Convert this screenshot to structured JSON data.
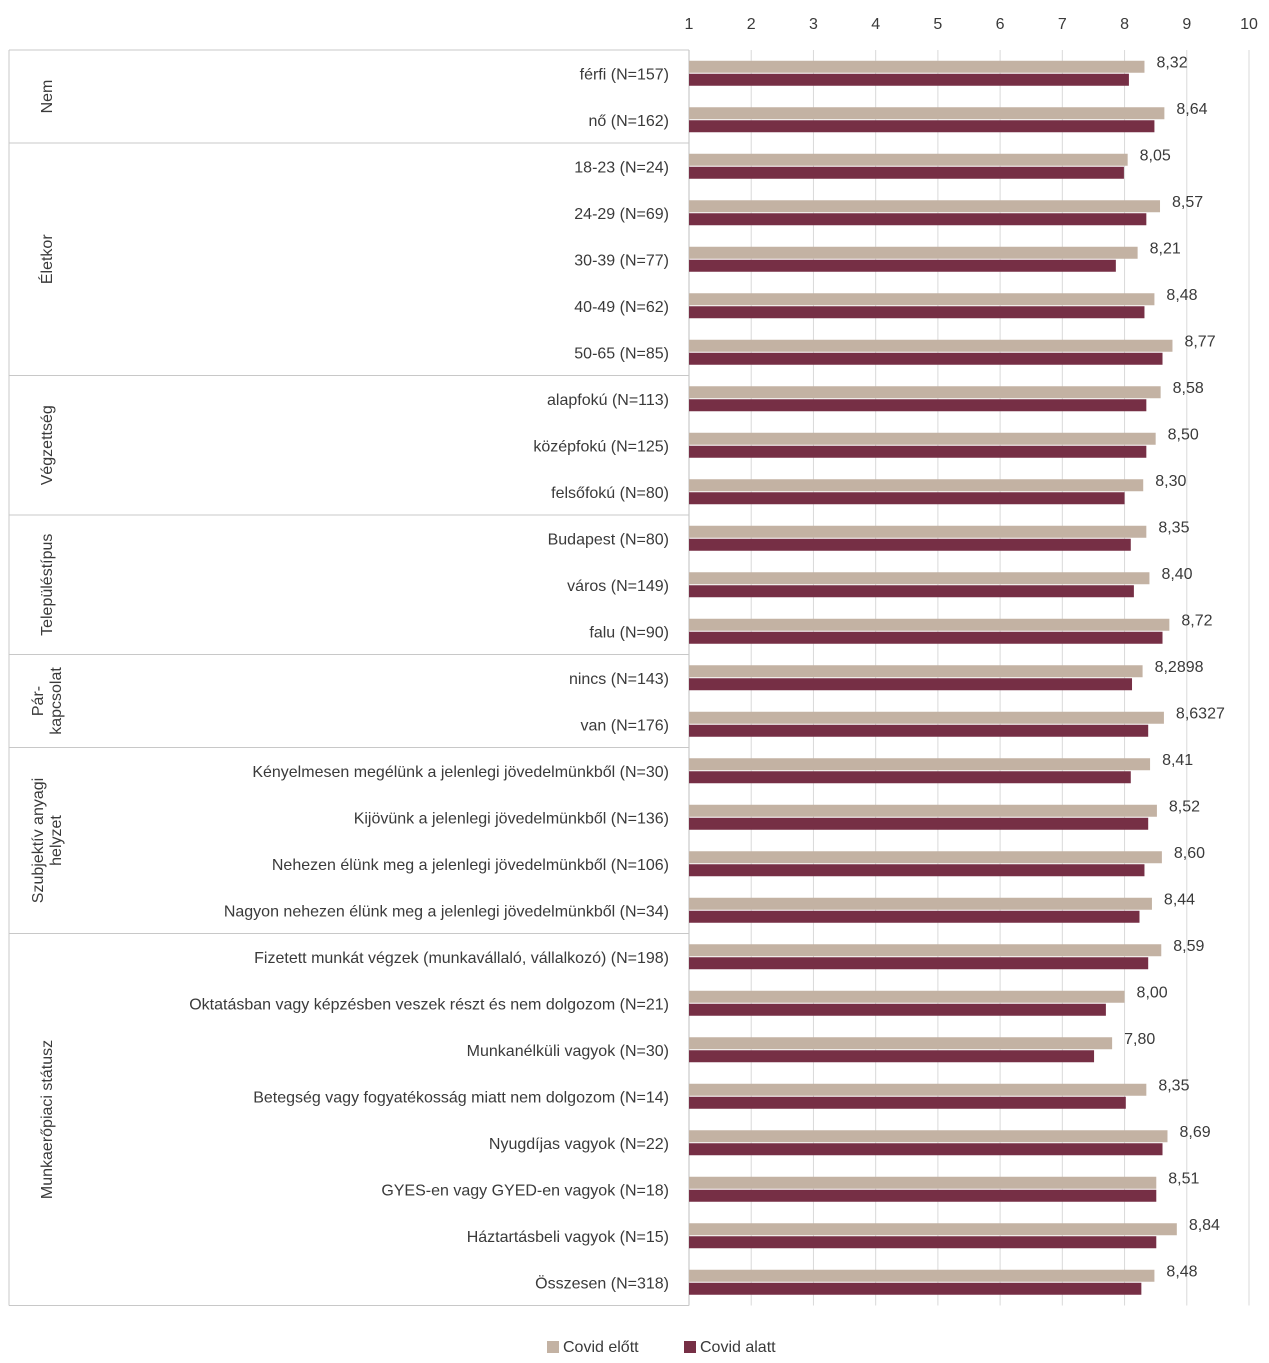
{
  "chart_data": {
    "type": "bar",
    "orientation": "horizontal",
    "xlim": [
      1,
      10
    ],
    "x_ticks": [
      "1",
      "2",
      "3",
      "4",
      "5",
      "6",
      "7",
      "8",
      "9",
      "10"
    ],
    "grid": true,
    "legend_placement": "bottom",
    "colors": {
      "Covid előtt": "#c3b2a3",
      "Covid alatt": "#762f45"
    },
    "groups": [
      {
        "name": "Nem",
        "categories": [
          "férfi (N=157)",
          "nő (N=162)"
        ]
      },
      {
        "name": "Életkor",
        "categories": [
          "18-23 (N=24)",
          "24-29 (N=69)",
          "30-39 (N=77)",
          "40-49 (N=62)",
          "50-65 (N=85)"
        ]
      },
      {
        "name": "Végzettség",
        "categories": [
          "alapfokú (N=113)",
          "középfokú (N=125)",
          "felsőfokú (N=80)"
        ]
      },
      {
        "name": "Településtípus",
        "categories": [
          "Budapest (N=80)",
          "város (N=149)",
          "falu (N=90)"
        ]
      },
      {
        "name": "Pár-\nkapcsolat",
        "categories": [
          "nincs (N=143)",
          "van (N=176)"
        ]
      },
      {
        "name": "Szubjektív anyagi\nhelyzet",
        "categories": [
          "Kényelmesen megélünk a jelenlegi jövedelmünkből (N=30)",
          "Kijövünk a jelenlegi jövedelmünkből (N=136)",
          "Nehezen élünk meg a jelenlegi jövedelmünkből (N=106)",
          "Nagyon nehezen élünk meg a jelenlegi jövedelmünkből (N=34)"
        ]
      },
      {
        "name": "Munkaerőpiaci státusz",
        "categories": [
          "Fizetett munkát végzek (munkavállaló, vállalkozó) (N=198)",
          "Oktatásban vagy képzésben veszek részt és nem dolgozom (N=21)",
          "Munkanélküli vagyok (N=30)",
          "Betegség vagy fogyatékosság miatt nem dolgozom (N=14)",
          "Nyugdíjas vagyok (N=22)",
          "GYES-en vagy GYED-en vagyok (N=18)",
          "Háztartásbeli vagyok (N=15)",
          "Összesen (N=318)"
        ]
      }
    ],
    "series": [
      {
        "name": "Covid előtt",
        "values": [
          8.32,
          8.64,
          8.05,
          8.57,
          8.21,
          8.48,
          8.77,
          8.58,
          8.5,
          8.3,
          8.35,
          8.4,
          8.72,
          8.2898,
          8.6327,
          8.41,
          8.52,
          8.6,
          8.44,
          8.59,
          8.0,
          7.8,
          8.35,
          8.69,
          8.51,
          8.84,
          8.48
        ]
      },
      {
        "name": "Covid alatt",
        "values": [
          8.07,
          8.48,
          7.99,
          8.35,
          7.86,
          8.32,
          8.61,
          8.35,
          8.35,
          8.0,
          8.1,
          8.15,
          8.61,
          8.12,
          8.38,
          8.1,
          8.38,
          8.32,
          8.24,
          8.38,
          7.7,
          7.51,
          8.02,
          8.61,
          8.51,
          8.51,
          8.27
        ]
      }
    ],
    "data_labels": [
      "8,32",
      "8,64",
      "8,05",
      "8,57",
      "8,21",
      "8,48",
      "8,77",
      "8,58",
      "8,50",
      "8,30",
      "8,35",
      "8,40",
      "8,72",
      "8,2898",
      "8,6327",
      "8,41",
      "8,52",
      "8,60",
      "8,44",
      "8,59",
      "8,00",
      "7,80",
      "8,35",
      "8,69",
      "8,51",
      "8,84",
      "8,48"
    ]
  }
}
